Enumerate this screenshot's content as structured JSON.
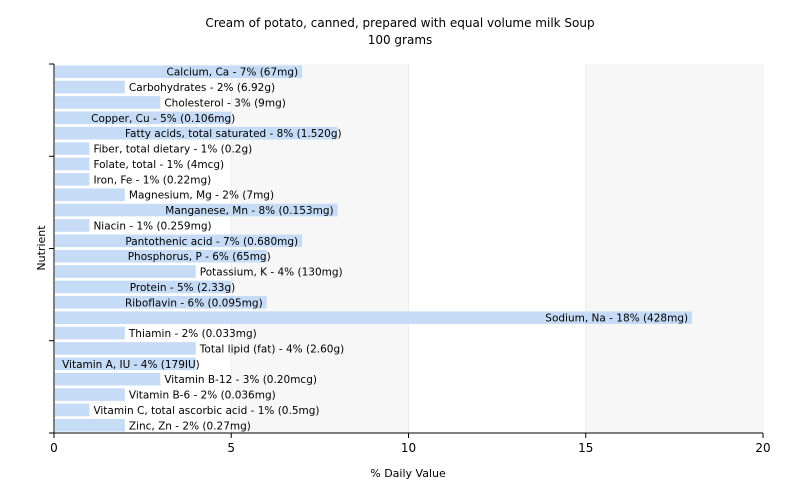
{
  "chart_data": {
    "type": "bar",
    "orientation": "horizontal",
    "title": "Cream of potato, canned, prepared with equal volume milk Soup",
    "subtitle": "100 grams",
    "xlabel": "% Daily Value",
    "ylabel": "Nutrient",
    "xlim": [
      0,
      20
    ],
    "xticks": [
      0,
      5,
      10,
      15,
      20
    ],
    "grid": true,
    "bar_color": "#c6dcf6",
    "categories": [
      "Calcium, Ca - 7% (67mg)",
      "Carbohydrates - 2% (6.92g)",
      "Cholesterol - 3% (9mg)",
      "Copper, Cu - 5% (0.106mg)",
      "Fatty acids, total saturated - 8% (1.520g)",
      "Fiber, total dietary - 1% (0.2g)",
      "Folate, total - 1% (4mcg)",
      "Iron, Fe - 1% (0.22mg)",
      "Magnesium, Mg - 2% (7mg)",
      "Manganese, Mn - 8% (0.153mg)",
      "Niacin - 1% (0.259mg)",
      "Pantothenic acid - 7% (0.680mg)",
      "Phosphorus, P - 6% (65mg)",
      "Potassium, K - 4% (130mg)",
      "Protein - 5% (2.33g)",
      "Riboflavin - 6% (0.095mg)",
      "Sodium, Na - 18% (428mg)",
      "Thiamin - 2% (0.033mg)",
      "Total lipid (fat) - 4% (2.60g)",
      "Vitamin A, IU - 4% (179IU)",
      "Vitamin B-12 - 3% (0.20mcg)",
      "Vitamin B-6 - 2% (0.036mg)",
      "Vitamin C, total ascorbic acid - 1% (0.5mg)",
      "Zinc, Zn - 2% (0.27mg)"
    ],
    "values": [
      7,
      2,
      3,
      5,
      8,
      1,
      1,
      1,
      2,
      8,
      1,
      7,
      6,
      4,
      5,
      6,
      18,
      2,
      4,
      4,
      3,
      2,
      1,
      2
    ]
  }
}
